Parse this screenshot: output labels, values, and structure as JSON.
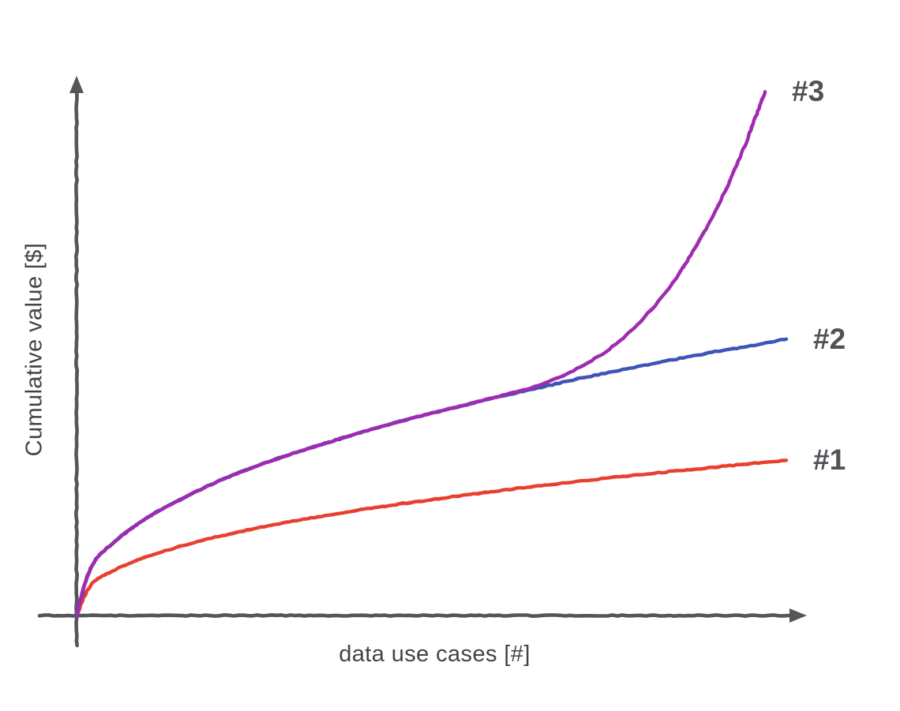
{
  "background": "#ffffff",
  "text_color": "#414348",
  "chart_data": {
    "type": "line",
    "style": "hand-drawn sketch, no gridlines, no tick labels",
    "title": "",
    "xlabel": "data use cases [#]",
    "ylabel": "Cumulative value [$]",
    "xlim": [
      0,
      102
    ],
    "ylim": [
      0,
      110
    ],
    "grid": false,
    "axis_color": "#55565a",
    "end_label_color": "#515257",
    "legend_position": "end-of-line labels at right",
    "series": [
      {
        "name": "#1",
        "color": "#e8402f",
        "shape": "diminishing returns (logarithmic), lowest plateau",
        "x": [
          0,
          2,
          5,
          10,
          15,
          20,
          25,
          30,
          35,
          40,
          45,
          50,
          55,
          60,
          65,
          70,
          75,
          80,
          85,
          90,
          95,
          100
        ],
        "y": [
          0,
          6.2,
          9.1,
          12.2,
          14.4,
          16.3,
          17.9,
          19.3,
          20.6,
          21.8,
          22.9,
          23.9,
          24.9,
          25.8,
          26.7,
          27.5,
          28.4,
          29.1,
          29.9,
          30.6,
          31.3,
          32
        ]
      },
      {
        "name": "#2",
        "color": "#3d55b8",
        "shape": "diminishing returns (logarithmic), middle plateau",
        "x": [
          0,
          2,
          5,
          10,
          15,
          20,
          25,
          30,
          35,
          40,
          45,
          50,
          55,
          60,
          65,
          70,
          75,
          80,
          85,
          90,
          95,
          100
        ],
        "y": [
          0,
          9.8,
          14.8,
          20.2,
          24.2,
          27.7,
          30.6,
          33.2,
          35.5,
          37.7,
          39.8,
          41.7,
          43.5,
          45.3,
          46.9,
          48.6,
          50.1,
          51.6,
          53.0,
          54.4,
          55.6,
          57.0
        ]
      },
      {
        "name": "#3",
        "color": "#a02bb0",
        "shape": "tracks #2 then diverges into exponential growth at top right",
        "x": [
          0,
          2,
          5,
          10,
          15,
          20,
          25,
          30,
          35,
          40,
          45,
          50,
          55,
          60,
          65,
          70,
          75,
          80,
          85,
          90,
          93,
          95,
          96,
          97
        ],
        "y": [
          0,
          9.8,
          14.8,
          20.2,
          24.2,
          27.7,
          30.6,
          33.2,
          35.5,
          37.7,
          39.8,
          41.7,
          43.5,
          45.4,
          47.4,
          50.5,
          54.9,
          61.5,
          70.7,
          83.4,
          92.9,
          100.1,
          104.1,
          108.0
        ]
      }
    ]
  }
}
